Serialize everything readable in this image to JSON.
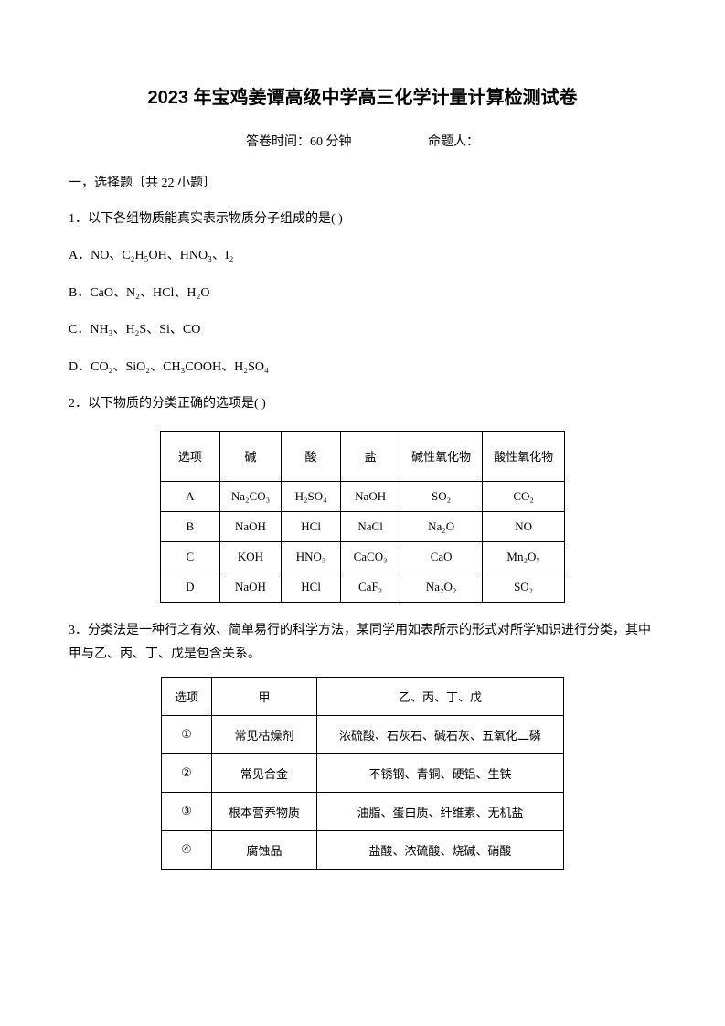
{
  "title": "2023 年宝鸡姜谭高级中学高三化学计量计算检测试卷",
  "meta": {
    "time_label": "答卷时间：60 分钟",
    "author_label": "命题人："
  },
  "section1": "一，选择题〔共 22 小题〕",
  "q1": {
    "stem": "1．以下各组物质能真实表示物质分子组成的是(       )",
    "optA": "A．NO、C₂H₅OH、HNO₃、I₂",
    "optB": "B．CaO、N₂、HCl、H₂O",
    "optC": "C．NH₃、H₂S、Si、CO",
    "optD": "D．CO₂、SiO₂、CH₃COOH、H₂SO₄"
  },
  "q2": {
    "stem": "2．以下物质的分类正确的选项是(       )",
    "table": {
      "headers": [
        "选项",
        "碱",
        "酸",
        "盐",
        "碱性氧化物",
        "酸性氧化物"
      ],
      "rows": [
        [
          "A",
          "Na₂CO₃",
          "H₂SO₄",
          "NaOH",
          "SO₂",
          "CO₂"
        ],
        [
          "B",
          "NaOH",
          "HCl",
          "NaCl",
          "Na₂O",
          "NO"
        ],
        [
          "C",
          "KOH",
          "HNO₃",
          "CaCO₃",
          "CaO",
          "Mn₂O₇"
        ],
        [
          "D",
          "NaOH",
          "HCl",
          "CaF₂",
          "Na₂O₂",
          "SO₂"
        ]
      ]
    }
  },
  "q3": {
    "stem": "3．分类法是一种行之有效、简单易行的科学方法，某同学用如表所示的形式对所学知识进行分类，其中甲与乙、丙、丁、戊是包含关系。",
    "table": {
      "headers": [
        "选项",
        "甲",
        "乙、丙、丁、戊"
      ],
      "rows": [
        [
          "①",
          "常见枯燥剂",
          "浓硫酸、石灰石、碱石灰、五氧化二磷"
        ],
        [
          "②",
          "常见合金",
          "不锈钢、青铜、硬铝、生铁"
        ],
        [
          "③",
          "根本营养物质",
          "油脂、蛋白质、纤维素、无机盐"
        ],
        [
          "④",
          "腐蚀品",
          "盐酸、浓硫酸、烧碱、硝酸"
        ]
      ]
    }
  }
}
